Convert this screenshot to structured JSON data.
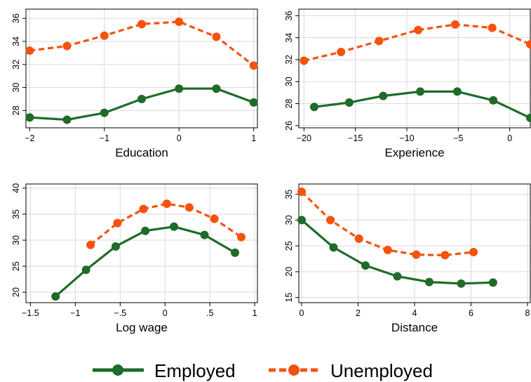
{
  "colors": {
    "employed": "#1f6b2a",
    "unemployed": "#f5520e",
    "grid": "#d9d9d9",
    "axis": "#000000"
  },
  "legend": {
    "position": "bottom",
    "items": [
      {
        "label": "Employed",
        "series": "employed"
      },
      {
        "label": "Unemployed",
        "series": "unemployed"
      }
    ]
  },
  "chart_data": [
    {
      "type": "line",
      "xlabel": "Education",
      "ylabel": "",
      "xlim": [
        -2.05,
        1.05
      ],
      "ylim": [
        26.5,
        36.8
      ],
      "xticks": [
        -2,
        -1,
        0,
        1
      ],
      "xtick_labels": [
        "−2",
        "−1",
        "0",
        "1"
      ],
      "yticks": [
        28,
        30,
        32,
        34,
        36
      ],
      "ytick_labels": [
        "28",
        "30",
        "32",
        "34",
        "36"
      ],
      "grid": true,
      "series": [
        {
          "name": "Employed",
          "key": "employed",
          "style": "solid",
          "x": [
            -2,
            -1.5,
            -1,
            -0.5,
            0,
            0.5,
            1
          ],
          "y": [
            27.4,
            27.2,
            27.8,
            29.0,
            29.9,
            29.9,
            28.7
          ]
        },
        {
          "name": "Unemployed",
          "key": "unemployed",
          "style": "dashed",
          "x": [
            -2,
            -1.5,
            -1,
            -0.5,
            0,
            0.5,
            1
          ],
          "y": [
            33.2,
            33.6,
            34.5,
            35.5,
            35.7,
            34.4,
            31.9
          ]
        }
      ]
    },
    {
      "type": "line",
      "xlabel": "Experience",
      "ylabel": "",
      "xlim": [
        -20.5,
        2
      ],
      "ylim": [
        25.8,
        36.6
      ],
      "xticks": [
        -20,
        -15,
        -10,
        -5,
        0
      ],
      "xtick_labels": [
        "−20",
        "−15",
        "−10",
        "−5",
        "0"
      ],
      "yticks": [
        26,
        28,
        30,
        32,
        34,
        36
      ],
      "ytick_labels": [
        "26",
        "28",
        "30",
        "32",
        "34",
        "36"
      ],
      "grid": true,
      "series": [
        {
          "name": "Employed",
          "key": "employed",
          "style": "solid",
          "x": [
            -19,
            -15.6,
            -12.3,
            -8.7,
            -5.1,
            -1.6,
            2
          ],
          "y": [
            27.7,
            28.1,
            28.7,
            29.1,
            29.1,
            28.3,
            26.7
          ]
        },
        {
          "name": "Unemployed",
          "key": "unemployed",
          "style": "dashed",
          "x": [
            -20,
            -16.4,
            -12.7,
            -8.9,
            -5.3,
            -1.7,
            2
          ],
          "y": [
            31.9,
            32.7,
            33.7,
            34.7,
            35.2,
            34.9,
            33.4
          ]
        }
      ]
    },
    {
      "type": "line",
      "xlabel": "Log wage",
      "ylabel": "",
      "xlim": [
        -1.55,
        1.03
      ],
      "ylim": [
        18,
        40.8
      ],
      "xticks": [
        -1.5,
        -1,
        -0.5,
        0,
        0.5,
        1
      ],
      "xtick_labels": [
        "−1.5",
        "−1",
        "−.5",
        "0",
        ".5",
        "1"
      ],
      "yticks": [
        20,
        25,
        30,
        35,
        40
      ],
      "ytick_labels": [
        "20",
        "25",
        "30",
        "35",
        "40"
      ],
      "grid": true,
      "series": [
        {
          "name": "Employed",
          "key": "employed",
          "style": "solid",
          "x": [
            -1.22,
            -0.88,
            -0.55,
            -0.22,
            0.1,
            0.44,
            0.78
          ],
          "y": [
            19.2,
            24.3,
            28.8,
            31.8,
            32.6,
            31.0,
            27.6
          ]
        },
        {
          "name": "Unemployed",
          "key": "unemployed",
          "style": "dashed",
          "x": [
            -0.83,
            -0.53,
            -0.24,
            0.02,
            0.27,
            0.55,
            0.85
          ],
          "y": [
            29.1,
            33.3,
            36.0,
            37.0,
            36.3,
            34.1,
            30.6
          ]
        }
      ]
    },
    {
      "type": "line",
      "xlabel": "Distance",
      "ylabel": "",
      "xlim": [
        -0.1,
        8.1
      ],
      "ylim": [
        14,
        37
      ],
      "xticks": [
        0,
        2,
        4,
        6,
        8
      ],
      "xtick_labels": [
        "0",
        "2",
        "4",
        "6",
        "8"
      ],
      "yticks": [
        15,
        20,
        25,
        30,
        35
      ],
      "ytick_labels": [
        "15",
        "20",
        "25",
        "30",
        "35"
      ],
      "grid": true,
      "series": [
        {
          "name": "Employed",
          "key": "employed",
          "style": "solid",
          "x": [
            0,
            1.13,
            2.26,
            3.39,
            4.52,
            5.65,
            6.78
          ],
          "y": [
            30.0,
            24.7,
            21.2,
            19.1,
            18.0,
            17.7,
            17.9
          ]
        },
        {
          "name": "Unemployed",
          "key": "unemployed",
          "style": "dashed",
          "x": [
            0,
            1.02,
            2.03,
            3.05,
            4.06,
            5.08,
            6.09
          ],
          "y": [
            35.5,
            30.0,
            26.4,
            24.2,
            23.3,
            23.2,
            23.8
          ]
        }
      ]
    }
  ]
}
